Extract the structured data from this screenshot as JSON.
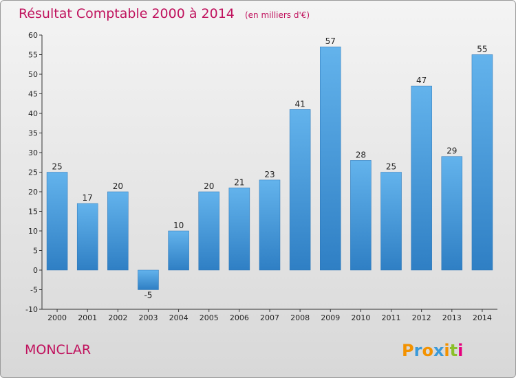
{
  "chart_data": {
    "type": "bar",
    "title": "Résultat Comptable 2000 à 2014",
    "subtitle": "(en milliers d'€)",
    "categories": [
      "2000",
      "2001",
      "2002",
      "2003",
      "2004",
      "2005",
      "2006",
      "2007",
      "2008",
      "2009",
      "2010",
      "2011",
      "2012",
      "2013",
      "2014"
    ],
    "values": [
      25,
      17,
      20,
      -5,
      10,
      20,
      21,
      23,
      41,
      57,
      28,
      25,
      47,
      29,
      55
    ],
    "ylim": [
      -10,
      60
    ],
    "yticks": [
      -10,
      -5,
      0,
      5,
      10,
      15,
      20,
      25,
      30,
      35,
      40,
      45,
      50,
      55,
      60
    ],
    "xlabel": "",
    "ylabel": "",
    "grid": false,
    "bar_color": "#3a8fd6"
  },
  "footer": {
    "town": "MONCLAR",
    "logo_text": "Proxiti"
  },
  "colors": {
    "accent": "#c0135e"
  }
}
